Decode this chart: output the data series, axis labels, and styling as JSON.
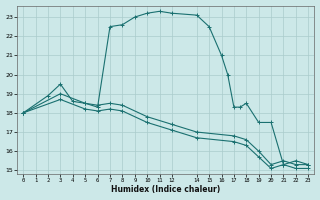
{
  "xlabel": "Humidex (Indice chaleur)",
  "bg_color": "#cce8e8",
  "grid_color": "#aacccc",
  "line_color": "#1a7070",
  "line1_x": [
    0,
    2,
    3,
    4,
    5,
    6,
    7,
    8,
    9,
    10,
    11,
    12,
    14,
    15,
    16,
    16.5,
    17,
    17.5,
    18,
    19,
    20,
    21,
    22,
    23
  ],
  "line1_y": [
    18,
    18.9,
    19.5,
    18.6,
    18.5,
    18.3,
    22.5,
    22.6,
    23.0,
    23.2,
    23.3,
    23.2,
    23.1,
    22.5,
    21.0,
    20.0,
    18.3,
    18.3,
    18.5,
    17.5,
    17.5,
    15.3,
    15.5,
    15.3
  ],
  "line2_x": [
    0,
    3,
    5,
    6,
    7,
    8,
    10,
    12,
    14,
    17,
    18,
    19,
    20,
    21,
    22,
    23
  ],
  "line2_y": [
    18,
    19.0,
    18.5,
    18.4,
    18.5,
    18.4,
    17.8,
    17.4,
    17.0,
    16.8,
    16.6,
    16.0,
    15.3,
    15.5,
    15.3,
    15.3
  ],
  "line3_x": [
    0,
    3,
    5,
    6,
    7,
    8,
    10,
    12,
    14,
    17,
    18,
    19,
    20,
    21,
    22,
    23
  ],
  "line3_y": [
    18,
    18.7,
    18.2,
    18.1,
    18.2,
    18.1,
    17.5,
    17.1,
    16.7,
    16.5,
    16.3,
    15.7,
    15.1,
    15.3,
    15.1,
    15.1
  ],
  "xlim": [
    -0.5,
    23.5
  ],
  "ylim": [
    14.8,
    23.6
  ],
  "yticks": [
    15,
    16,
    17,
    18,
    19,
    20,
    21,
    22,
    23
  ],
  "xticks": [
    0,
    1,
    2,
    3,
    4,
    5,
    6,
    7,
    8,
    9,
    10,
    11,
    12,
    14,
    15,
    16,
    17,
    18,
    19,
    20,
    21,
    22,
    23
  ]
}
